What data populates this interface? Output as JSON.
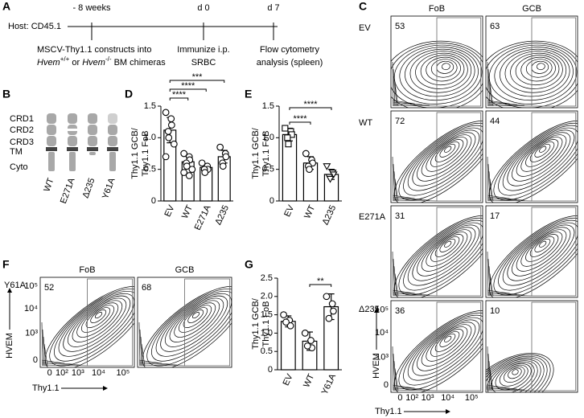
{
  "panel_labels": [
    "A",
    "B",
    "C",
    "D",
    "E",
    "F",
    "G"
  ],
  "timeline": {
    "host": "Host: CD45.1",
    "timepoints": [
      "- 8 weeks",
      "d 0",
      "d 7"
    ],
    "step1": {
      "line1": "MSCV-Thy1.1 constructs into",
      "line2": [
        "Hvem",
        "+/+",
        " or ",
        "Hvem",
        "-/-",
        " BM chimeras"
      ]
    },
    "step2": [
      "Immunize i.p.",
      "SRBC"
    ],
    "step3": [
      "Flow cytometry",
      "analysis (spleen)"
    ]
  },
  "constructs": {
    "domains": [
      "CRD1",
      "CRD2",
      "CRD3",
      "TM",
      "Cyto"
    ],
    "variants": [
      "WT",
      "E271A",
      "Δ235",
      "Y61A"
    ]
  },
  "flow_c": {
    "columns": [
      "FoB",
      "GCB"
    ],
    "rows": [
      {
        "label": "EV",
        "values": [
          53,
          63
        ]
      },
      {
        "label": "WT",
        "values": [
          72,
          44
        ]
      },
      {
        "label": "E271A",
        "values": [
          31,
          17
        ]
      },
      {
        "label": "Δ235",
        "values": [
          36,
          10
        ]
      }
    ],
    "x_label": "Thy1.1",
    "y_label": "HVEM",
    "xticks": [
      "0",
      "10²",
      "10³",
      "10⁴",
      "10⁵"
    ],
    "yticks": [
      "0",
      "10³",
      "10⁴",
      "10⁵"
    ]
  },
  "flow_f": {
    "columns": [
      "FoB",
      "GCB"
    ],
    "rows": [
      {
        "label": "Y61A",
        "values": [
          52,
          68
        ]
      }
    ],
    "x_label": "Thy1.1",
    "y_label": "HVEM",
    "xticks": [
      "0",
      "10²",
      "10³",
      "10⁴",
      "10⁵"
    ],
    "yticks": [
      "0",
      "10³",
      "10⁴",
      "10⁵"
    ]
  },
  "chart_data": [
    {
      "type": "bar",
      "y_label": [
        "Thy1.1 GCB/",
        "Thy1.1 FoB"
      ],
      "categories": [
        "EV",
        "WT",
        "E271A",
        "Δ235"
      ],
      "values": [
        1.12,
        0.62,
        0.53,
        0.7
      ],
      "errors": [
        0.2,
        0.1,
        0.05,
        0.1
      ],
      "points": [
        [
          1.4,
          1.3,
          1.2,
          1.1,
          1.0,
          0.9,
          0.7
        ],
        [
          0.75,
          0.7,
          0.65,
          0.6,
          0.55,
          0.5,
          0.45,
          0.4
        ],
        [
          0.6,
          0.55,
          0.5,
          0.5,
          0.45
        ],
        [
          0.85,
          0.75,
          0.7,
          0.6,
          0.55
        ]
      ],
      "markers": [
        "circle",
        "circle",
        "circle",
        "circle"
      ],
      "color": "#000000",
      "ylim": [
        0,
        1.5
      ],
      "yticks": [
        0,
        0.5,
        {
          "value": 1,
          "label": "1.0"
        },
        1.5
      ],
      "significance": [
        {
          "between": [
            "EV",
            "WT"
          ],
          "label": "****"
        },
        {
          "between": [
            "EV",
            "E271A"
          ],
          "label": "****"
        },
        {
          "between": [
            "EV",
            "Δ235"
          ],
          "label": "***"
        }
      ]
    },
    {
      "type": "bar",
      "y_label": [
        "Thy1.1 GCB/",
        "Thy1.1 FoB"
      ],
      "categories": [
        "EV",
        "WT",
        "Δ235"
      ],
      "values": [
        1.05,
        0.6,
        0.42
      ],
      "errors": [
        0.1,
        0.1,
        0.08
      ],
      "points": [
        [
          1.15,
          1.1,
          1.05,
          1.0,
          0.9
        ],
        [
          0.75,
          0.65,
          0.6,
          0.55,
          0.5
        ],
        [
          0.55,
          0.45,
          0.42,
          0.38,
          0.35
        ]
      ],
      "markers": [
        "square",
        "circle",
        "triangle-down"
      ],
      "color": "#000000",
      "ylim": [
        0,
        1.5
      ],
      "yticks": [
        0,
        0.5,
        {
          "value": 1,
          "label": "1.0"
        },
        1.5
      ],
      "significance": [
        {
          "between": [
            "EV",
            "WT"
          ],
          "label": "****"
        },
        {
          "between": [
            "EV",
            "Δ235"
          ],
          "label": "****"
        }
      ]
    },
    {
      "type": "bar",
      "y_label": [
        "Thy1.1 GCB/",
        "Thy1.1 FoB"
      ],
      "categories": [
        "EV",
        "WT",
        "Y61A"
      ],
      "values": [
        1.32,
        0.78,
        1.72
      ],
      "errors": [
        0.15,
        0.25,
        0.35
      ],
      "points": [
        [
          1.5,
          1.35,
          1.2,
          1.3
        ],
        [
          1.0,
          0.8,
          0.6,
          0.65
        ],
        [
          2.0,
          1.8,
          1.6,
          1.4
        ]
      ],
      "markers": [
        "circle",
        "circle",
        "circle"
      ],
      "color": "#000000",
      "ylim": [
        0,
        2.5
      ],
      "yticks": [
        0,
        0.5,
        {
          "value": 1,
          "label": "1.0"
        },
        1.5,
        {
          "value": 2,
          "label": "2.0"
        },
        2.5
      ],
      "significance": [
        {
          "between": [
            "WT",
            "Y61A"
          ],
          "label": "**"
        }
      ]
    }
  ]
}
